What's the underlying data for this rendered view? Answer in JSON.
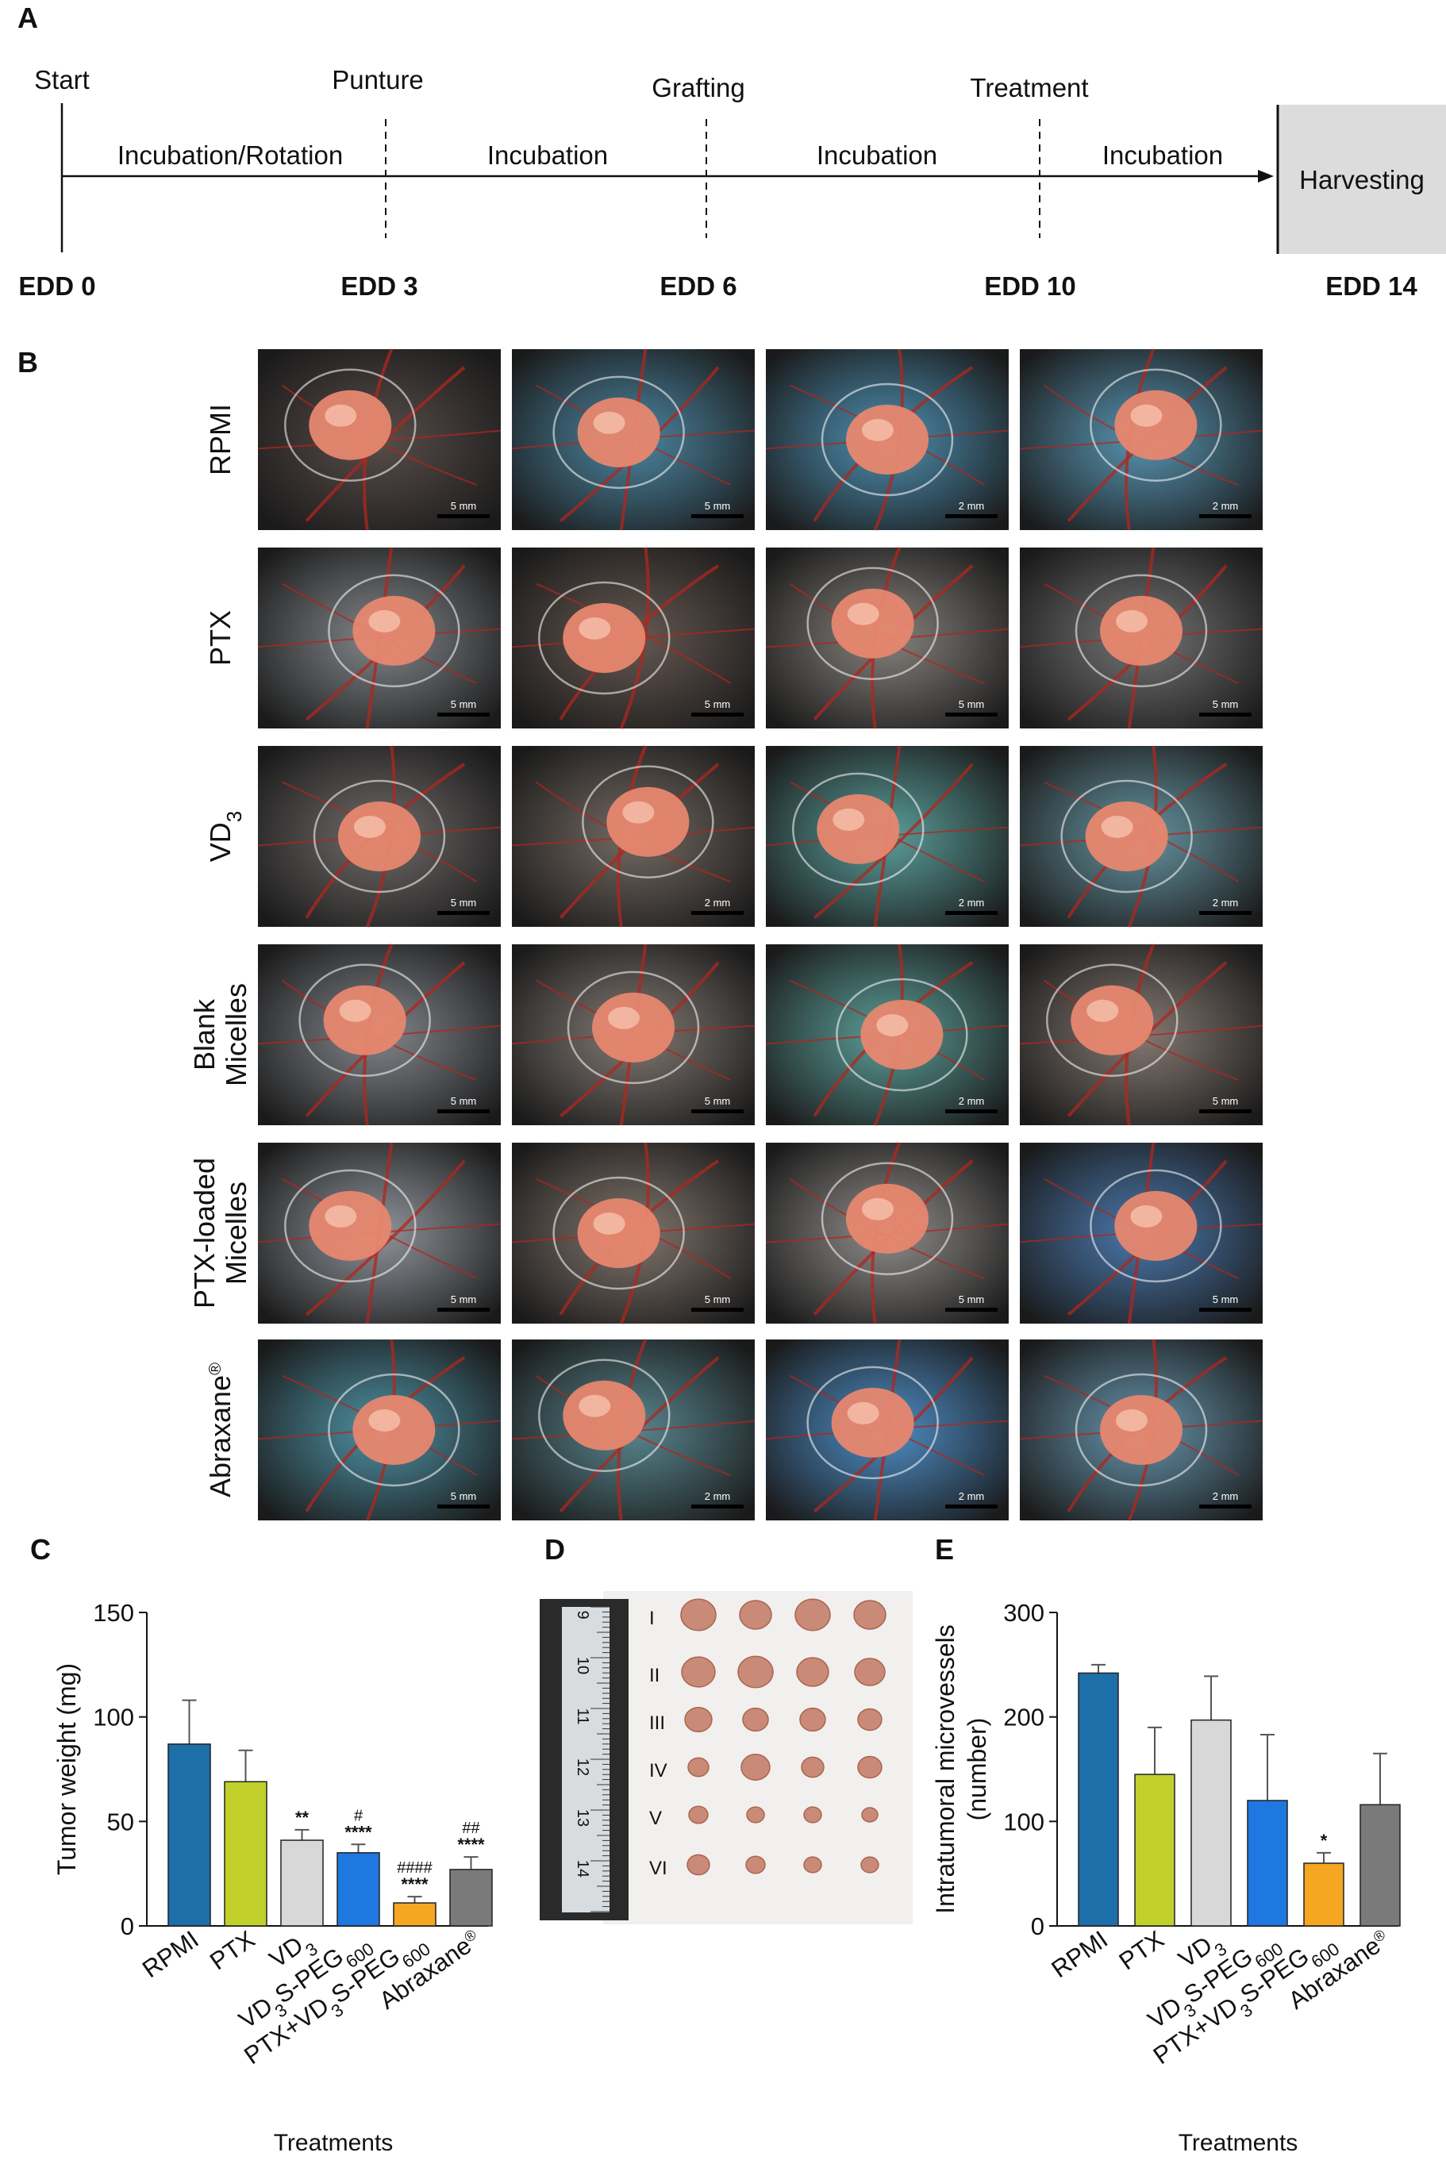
{
  "panel_labels": {
    "a": "A",
    "b": "B",
    "c": "C",
    "d": "D",
    "e": "E"
  },
  "timeline": {
    "stages_top": [
      "Start",
      "Punture",
      "Grafting",
      "Treatment"
    ],
    "segments": [
      "Incubation/Rotation",
      "Incubation",
      "Incubation",
      "Incubation"
    ],
    "end_box": "Harvesting",
    "days": [
      "EDD 0",
      "EDD 3",
      "EDD 6",
      "EDD 10",
      "EDD 14"
    ]
  },
  "photo_grid": {
    "rows": [
      {
        "label_lines": [
          "RPMI"
        ],
        "scales": [
          "5 mm",
          "5 mm",
          "2 mm",
          "2 mm"
        ],
        "tones": [
          "#3a2e2a",
          "#2d6f8f",
          "#2f7aa0",
          "#3a7fa0"
        ]
      },
      {
        "label_lines": [
          "PTX"
        ],
        "scales": [
          "5 mm",
          "5 mm",
          "5 mm",
          "5 mm"
        ],
        "tones": [
          "#6b6f74",
          "#4a3b33",
          "#6f6a64",
          "#5a5a5c"
        ]
      },
      {
        "label_lines": [
          "VD",
          "3"
        ],
        "scales": [
          "5 mm",
          "2 mm",
          "2 mm",
          "2 mm"
        ],
        "tones": [
          "#55504e",
          "#5a4e46",
          "#3c8a86",
          "#4a7f8e"
        ]
      },
      {
        "label_lines": [
          "Blank",
          "Micelles"
        ],
        "scales": [
          "5 mm",
          "5 mm",
          "2 mm",
          "5 mm"
        ],
        "tones": [
          "#6a6e75",
          "#6b615a",
          "#3e8a84",
          "#6d6058"
        ]
      },
      {
        "label_lines": [
          "PTX-loaded",
          "Micelles"
        ],
        "scales": [
          "5 mm",
          "5 mm",
          "5 mm",
          "5 mm"
        ],
        "tones": [
          "#7a8088",
          "#6a5c52",
          "#7a7774",
          "#2b5f9a"
        ]
      },
      {
        "label_lines": [
          "Abraxane®"
        ],
        "scales": [
          "5 mm",
          "2 mm",
          "2 mm",
          "2 mm"
        ],
        "tones": [
          "#2f7b90",
          "#3a6e78",
          "#2f78b8",
          "#4a7f9a"
        ]
      }
    ]
  },
  "ruler": {
    "numbers": [
      "9",
      "10",
      "11",
      "12",
      "13",
      "14"
    ]
  },
  "tumor_rows": {
    "labels": [
      "I",
      "II",
      "III",
      "IV",
      "V",
      "VI"
    ]
  },
  "chart_data": [
    {
      "type": "bar",
      "panel": "C",
      "categories": [
        "RPMI",
        "PTX",
        "VD3",
        "VD3S-PEG600",
        "PTX+VD3S-PEG600",
        "Abraxane®"
      ],
      "values": [
        87,
        69,
        41,
        35,
        11,
        27
      ],
      "errors": [
        21,
        15,
        5,
        4,
        3,
        6
      ],
      "colors": [
        "#1c6fa8",
        "#c2d02c",
        "#d8d8d8",
        "#1e78e0",
        "#f5a623",
        "#7a7a7a"
      ],
      "significance": [
        [
          "",
          ""
        ],
        [
          "",
          ""
        ],
        [
          "",
          "**"
        ],
        [
          "#",
          "****"
        ],
        [
          "####",
          "****"
        ],
        [
          "##",
          "****"
        ]
      ],
      "ylabel": "Tumor weight (mg)",
      "xlabel": "Treatments",
      "ylim": [
        0,
        150
      ],
      "yticks": [
        0,
        50,
        100,
        150
      ]
    },
    {
      "type": "bar",
      "panel": "E",
      "categories": [
        "RPMI",
        "PTX",
        "VD3",
        "VD3S-PEG600",
        "PTX+VD3S-PEG600",
        "Abraxane®"
      ],
      "values": [
        242,
        145,
        197,
        120,
        60,
        116
      ],
      "errors": [
        8,
        45,
        42,
        63,
        10,
        49
      ],
      "colors": [
        "#1c6fa8",
        "#c2d02c",
        "#d8d8d8",
        "#1e78e0",
        "#f5a623",
        "#7a7a7a"
      ],
      "significance": [
        [
          "",
          ""
        ],
        [
          "",
          ""
        ],
        [
          "",
          ""
        ],
        [
          "",
          ""
        ],
        [
          "",
          "*"
        ],
        [
          "",
          ""
        ]
      ],
      "ylabel_lines": [
        "Intratumoral microvessels",
        "(number)"
      ],
      "xlabel": "Treatments",
      "ylim": [
        0,
        300
      ],
      "yticks": [
        0,
        100,
        200,
        300
      ]
    }
  ]
}
